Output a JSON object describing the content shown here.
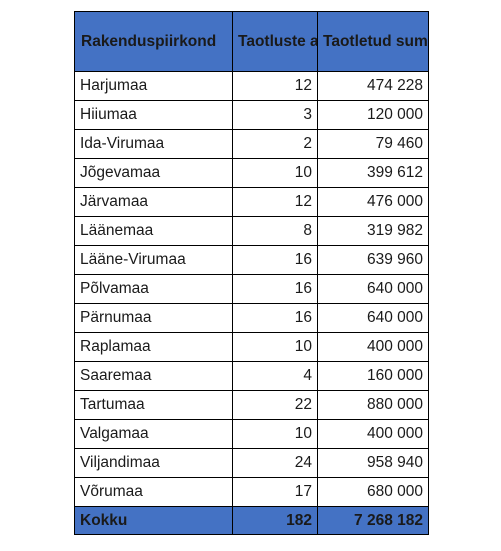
{
  "colors": {
    "header_bg": "#4472c4",
    "header_text": "#ffffff",
    "border": "#000000"
  },
  "table": {
    "headers": {
      "county": "Rakenduspiirkond",
      "count": "Taotluste arv",
      "amount": "Taotletud summa"
    },
    "rows": [
      {
        "county": "Harjumaa",
        "count": "12",
        "amount": "474 228"
      },
      {
        "county": "Hiiumaa",
        "count": "3",
        "amount": "120 000"
      },
      {
        "county": "Ida-Virumaa",
        "count": "2",
        "amount": "79 460"
      },
      {
        "county": "Jõgevamaa",
        "count": "10",
        "amount": "399 612"
      },
      {
        "county": "Järvamaa",
        "count": "12",
        "amount": "476 000"
      },
      {
        "county": "Läänemaa",
        "count": "8",
        "amount": "319 982"
      },
      {
        "county": "Lääne-Virumaa",
        "count": "16",
        "amount": "639 960"
      },
      {
        "county": "Põlvamaa",
        "count": "16",
        "amount": "640 000"
      },
      {
        "county": "Pärnumaa",
        "count": "16",
        "amount": "640 000"
      },
      {
        "county": "Raplamaa",
        "count": "10",
        "amount": "400 000"
      },
      {
        "county": "Saaremaa",
        "count": "4",
        "amount": "160 000"
      },
      {
        "county": "Tartumaa",
        "count": "22",
        "amount": "880 000"
      },
      {
        "county": "Valgamaa",
        "count": "10",
        "amount": "400 000"
      },
      {
        "county": "Viljandimaa",
        "count": "24",
        "amount": "958 940"
      },
      {
        "county": "Võrumaa",
        "count": "17",
        "amount": "680 000"
      }
    ],
    "total": {
      "label": "Kokku",
      "count": "182",
      "amount": "7 268 182"
    }
  }
}
